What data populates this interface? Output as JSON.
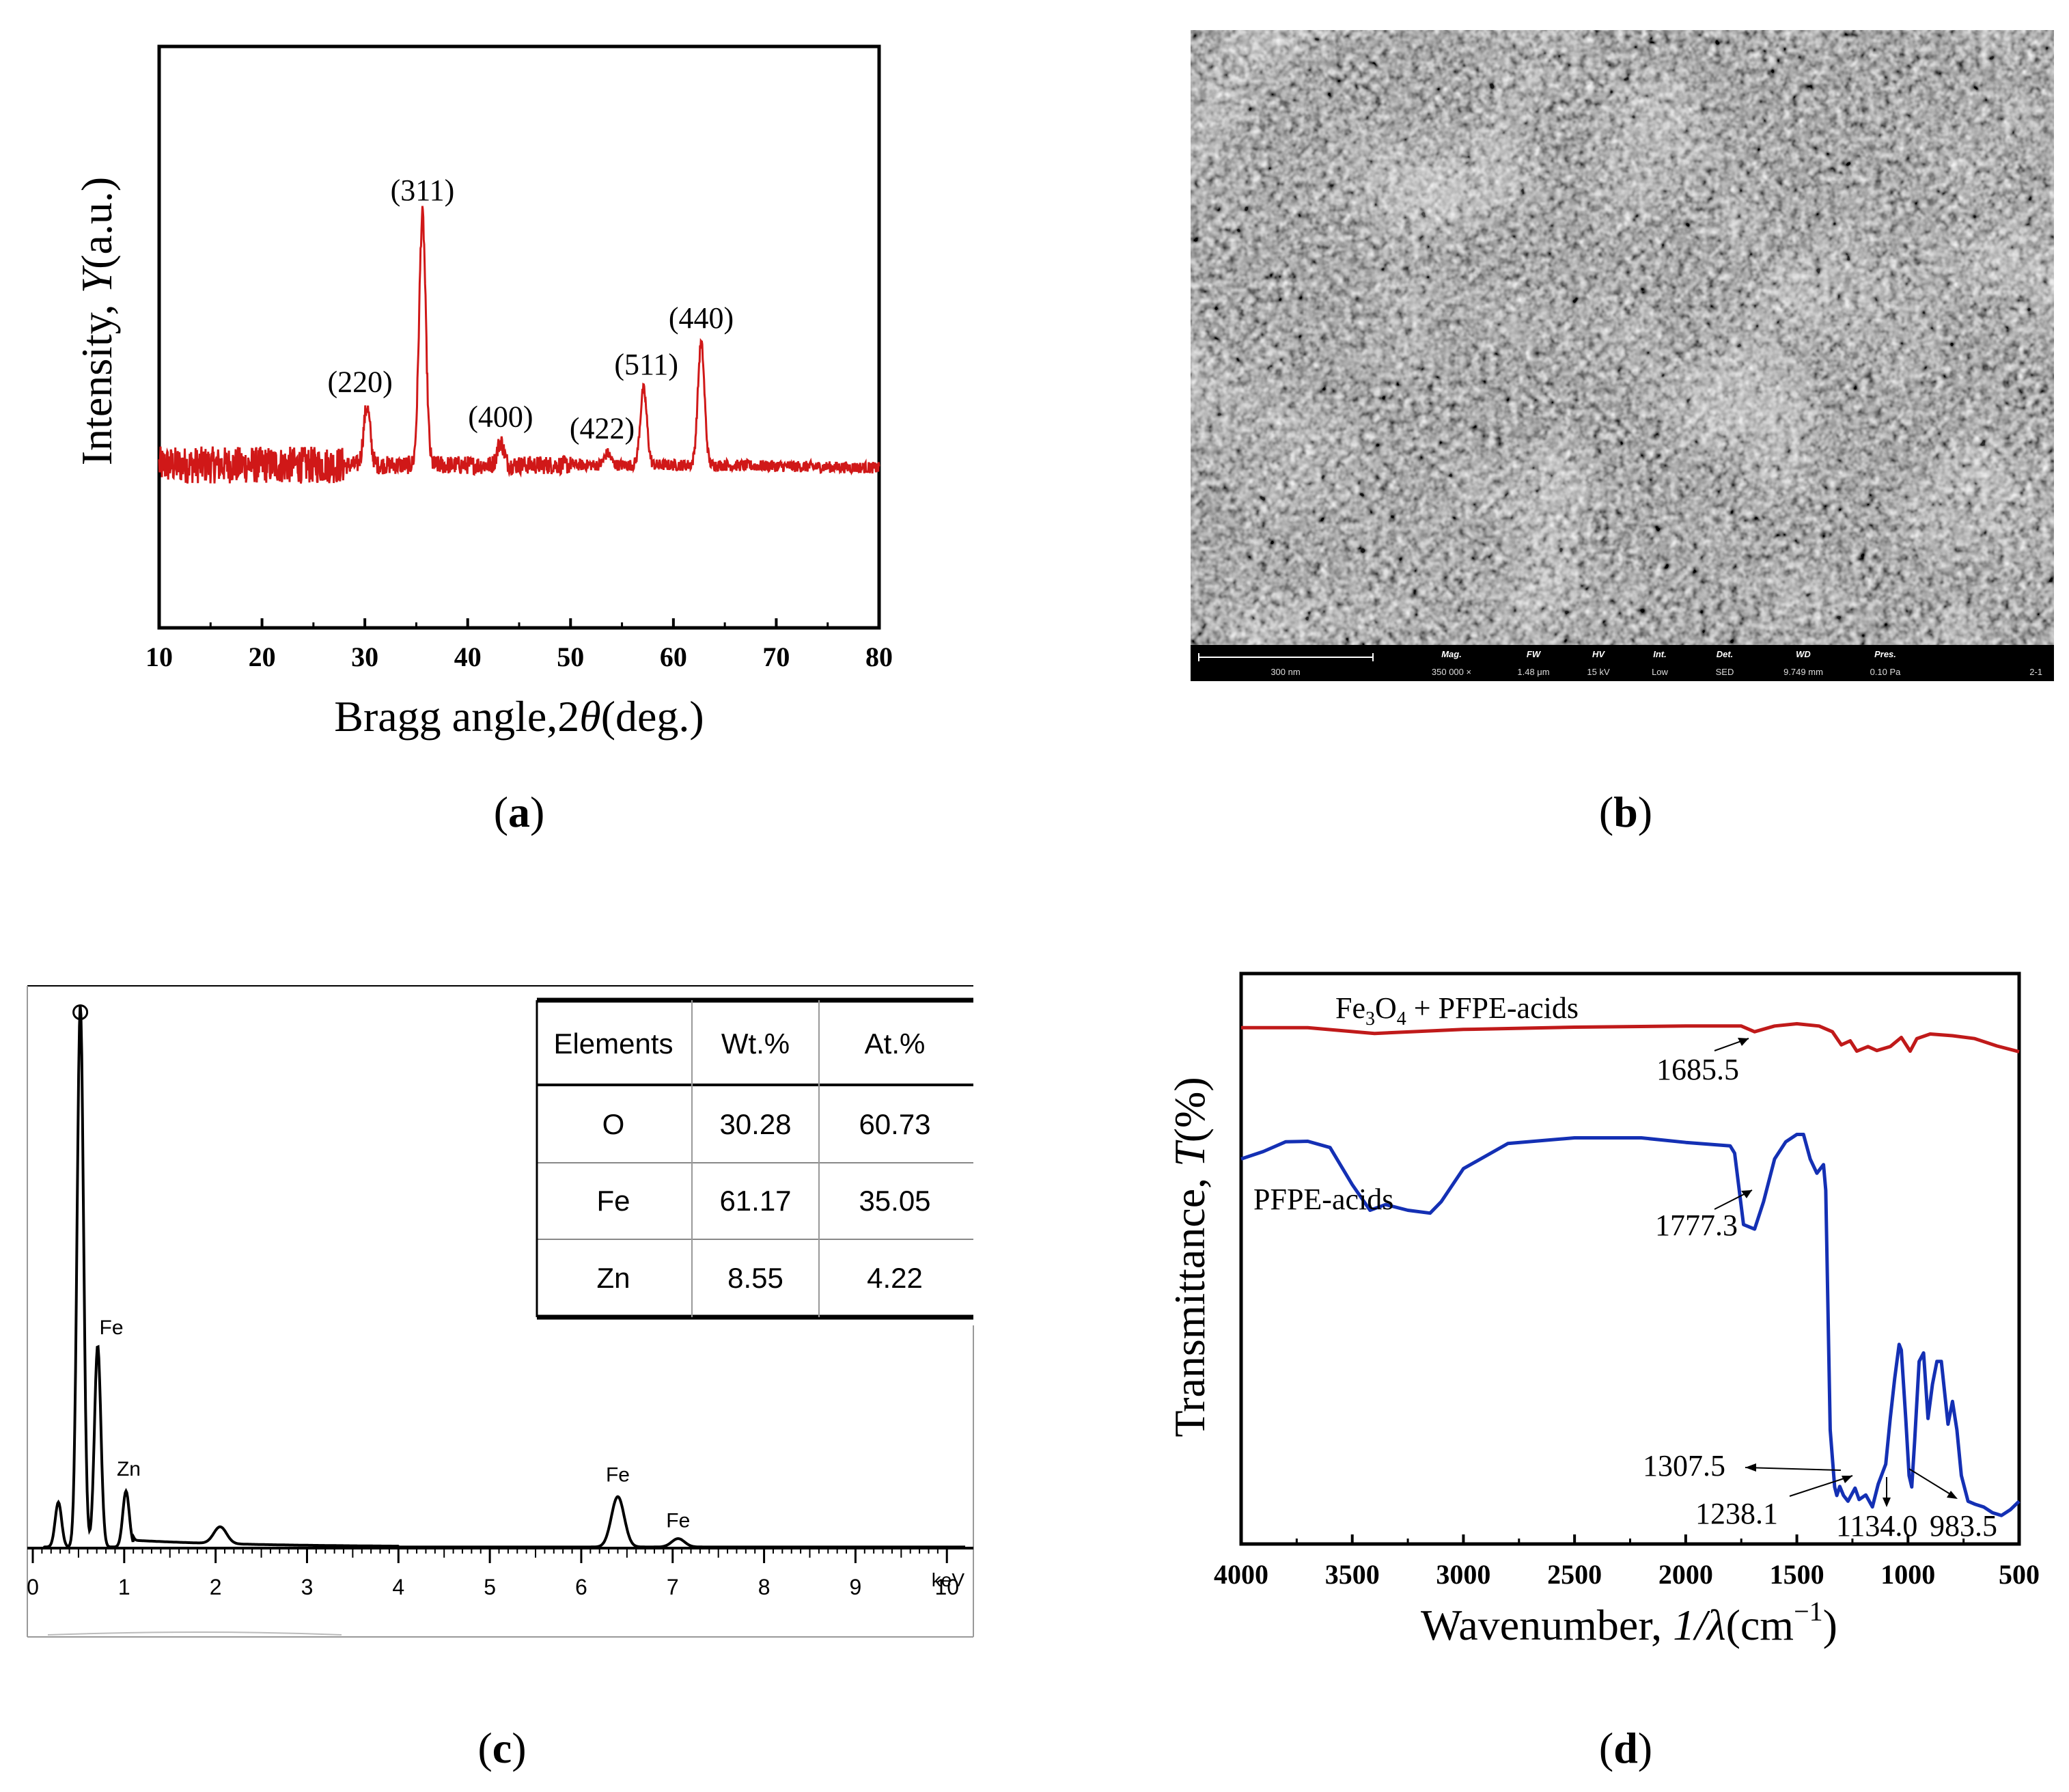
{
  "captions": {
    "a": "a",
    "b": "b",
    "c": "c",
    "d": "d"
  },
  "colors": {
    "xrd": "#d01818",
    "ftir_top": "#c01a1a",
    "ftir_bottom": "#1430b4",
    "axis": "#000000"
  },
  "chart_data": [
    {
      "panel": "a",
      "type": "line",
      "xlabel_prefix": "Bragg angle,2",
      "xlabel_symbol": "θ",
      "xlabel_suffix": "(deg.)",
      "ylabel_prefix": "Intensity, ",
      "ylabel_symbol": "Y",
      "ylabel_suffix": "(a.u.)",
      "xlim": [
        10,
        80
      ],
      "ylim": [
        0,
        100
      ],
      "xticks": [
        10,
        20,
        30,
        40,
        50,
        60,
        70,
        80
      ],
      "baseline": 28,
      "peaks": [
        {
          "label": "(220)",
          "x": 30.2,
          "height": 38
        },
        {
          "label": "(311)",
          "x": 35.6,
          "height": 71
        },
        {
          "label": "(400)",
          "x": 43.2,
          "height": 32
        },
        {
          "label": "(422)",
          "x": 53.6,
          "height": 30
        },
        {
          "label": "(511)",
          "x": 57.1,
          "height": 41
        },
        {
          "label": "(440)",
          "x": 62.7,
          "height": 49
        }
      ]
    },
    {
      "panel": "c",
      "type": "line",
      "xlabel": "keV",
      "xlim": [
        0,
        10.2
      ],
      "xticks": [
        0,
        1,
        2,
        3,
        4,
        5,
        6,
        7,
        8,
        9,
        10
      ],
      "ylim": [
        0,
        100
      ],
      "peaks": [
        {
          "label": "",
          "x": 0.28,
          "height": 8
        },
        {
          "label": "O",
          "x": 0.52,
          "height": 97
        },
        {
          "label": "Fe",
          "x": 0.71,
          "height": 36
        },
        {
          "label": "Zn",
          "x": 1.02,
          "height": 10
        },
        {
          "label": "",
          "x": 2.05,
          "height": 3
        },
        {
          "label": "Fe",
          "x": 6.4,
          "height": 9
        },
        {
          "label": "Fe",
          "x": 7.06,
          "height": 1.5
        }
      ],
      "table": {
        "columns": [
          "Elements",
          "Wt.%",
          "At.%"
        ],
        "rows": [
          [
            "O",
            "30.28",
            "60.73"
          ],
          [
            "Fe",
            "61.17",
            "35.05"
          ],
          [
            "Zn",
            "8.55",
            "4.22"
          ]
        ]
      }
    },
    {
      "panel": "d",
      "type": "line",
      "xlabel_prefix": "Wavenumber, ",
      "xlabel_symbol": "1/λ",
      "xlabel_unit": "(cm",
      "xlabel_sup": "−1",
      "xlabel_close": ")",
      "ylabel_prefix": "Transmittance, ",
      "ylabel_symbol": "T",
      "ylabel_suffix": "(%)",
      "xlim": [
        4000,
        500
      ],
      "ylim": [
        0,
        100
      ],
      "xticks": [
        4000,
        3500,
        3000,
        2500,
        2000,
        1500,
        1000,
        500
      ],
      "series": [
        {
          "name": "Fe3O4 + PFPE-acids",
          "x": [
            4000,
            3700,
            3400,
            3000,
            2500,
            2000,
            1750,
            1690,
            1600,
            1500,
            1400,
            1340,
            1300,
            1260,
            1230,
            1180,
            1140,
            1080,
            1030,
            990,
            960,
            900,
            800,
            700,
            600,
            500
          ],
          "y": [
            90.5,
            90.5,
            89.5,
            90.2,
            90.6,
            90.8,
            90.8,
            89.8,
            90.8,
            91.2,
            90.8,
            89.8,
            87.5,
            88.2,
            86.4,
            87.2,
            86.5,
            87.2,
            88.8,
            86.4,
            88.6,
            89.4,
            89.1,
            88.6,
            87.3,
            86.3
          ]
        },
        {
          "name": "PFPE-acids",
          "x": [
            4000,
            3900,
            3800,
            3700,
            3600,
            3500,
            3420,
            3350,
            3250,
            3150,
            3100,
            3000,
            2800,
            2500,
            2200,
            2000,
            1800,
            1780,
            1740,
            1690,
            1650,
            1600,
            1550,
            1500,
            1470,
            1440,
            1410,
            1380,
            1370,
            1350,
            1330,
            1320,
            1307,
            1290,
            1270,
            1238,
            1220,
            1190,
            1160,
            1134,
            1100,
            1080,
            1060,
            1040,
            1030,
            1010,
            995,
            983,
            970,
            950,
            930,
            910,
            890,
            870,
            850,
            820,
            800,
            780,
            760,
            730,
            700,
            660,
            620,
            580,
            540,
            500
          ],
          "y": [
            67.5,
            68.8,
            70.5,
            70.6,
            69.5,
            63,
            58.5,
            59.5,
            58.5,
            58,
            60,
            65.8,
            70.2,
            71.2,
            71.2,
            70.4,
            69.8,
            68.5,
            56,
            55.2,
            60,
            67.5,
            70.5,
            71.8,
            71.8,
            67.5,
            65,
            66.5,
            62,
            20,
            10,
            8.5,
            10.1,
            8.5,
            7.5,
            9.8,
            7.8,
            8.6,
            6.5,
            10.5,
            14,
            22,
            29,
            35,
            34,
            22,
            12,
            10,
            18,
            32,
            33.5,
            22,
            28,
            32,
            32,
            21,
            25,
            20,
            12,
            7.5,
            7,
            6.5,
            5.5,
            5,
            6,
            7.5
          ]
        }
      ],
      "annotations": [
        "1685.5",
        "1777.3",
        "1307.5",
        "1238.1",
        "1134.0",
        "983.5"
      ],
      "legend_top": {
        "p1": "Fe",
        "s1": "3",
        "p2": "O",
        "s2": "4",
        "p3": " + PFPE-acids"
      },
      "legend_bottom": "PFPE-acids"
    }
  ],
  "sem": {
    "scale_label": "300 nm",
    "fields": [
      {
        "label": "Mag.",
        "value": "350 000 ×"
      },
      {
        "label": "FW",
        "value": "1.48 μm"
      },
      {
        "label": "HV",
        "value": "15 kV"
      },
      {
        "label": "Int.",
        "value": "Low"
      },
      {
        "label": "Det.",
        "value": "SED"
      },
      {
        "label": "WD",
        "value": "9.749 mm"
      },
      {
        "label": "Pres.",
        "value": "0.10 Pa"
      }
    ],
    "image_id": "2-1"
  }
}
